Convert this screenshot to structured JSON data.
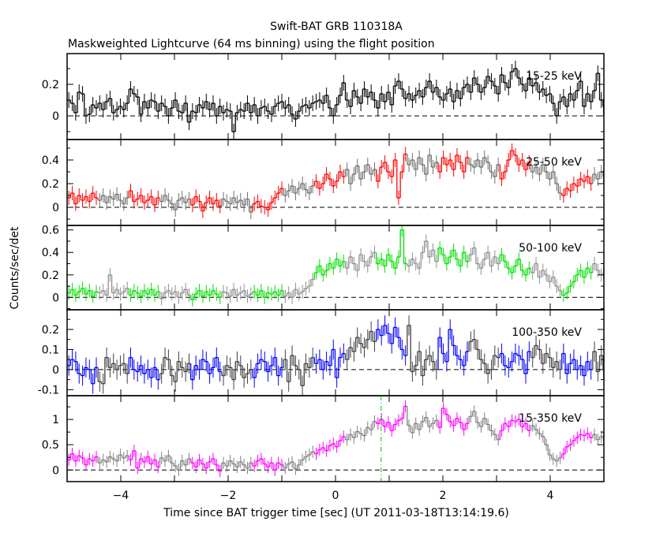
{
  "chart_data": [
    {
      "type": "line",
      "title": "Swift-BAT GRB 110318A",
      "subtitle": "Maskweighted Lightcurve (64 ms binning) using the flight position",
      "xlabel": "Time since BAT trigger time [sec] (UT 2011-03-18T13:14:19.6)",
      "ylabel": "Counts/sec/det",
      "xlim": [
        -5,
        5
      ],
      "x_ticks": [
        -4,
        -2,
        0,
        2,
        4
      ],
      "t_start": -5,
      "bin_width": 0.064,
      "reference_line_t": 0.85,
      "panels": [
        {
          "label": "15-25 keV",
          "color": "#000000",
          "alt_color": "#000000",
          "ylim": [
            -0.15,
            0.395
          ],
          "y_ticks": [
            0,
            0.2
          ],
          "error": 0.05,
          "values": [
            0.1,
            0.08,
            0.02,
            0.15,
            0.14,
            0.0,
            0.01,
            0.07,
            0.05,
            0.08,
            0.04,
            0.09,
            0.11,
            0.02,
            0.04,
            0.06,
            0.04,
            0.08,
            0.17,
            0.14,
            0.12,
            0.01,
            0.09,
            0.05,
            0.1,
            0.09,
            0.03,
            0.08,
            0.06,
            0.0,
            0.05,
            0.1,
            0.03,
            0.02,
            0.08,
            -0.04,
            0.03,
            0.02,
            0.07,
            0.05,
            0.09,
            0.04,
            0.08,
            0.0,
            0.06,
            0.02,
            0.04,
            0.03,
            -0.1,
            0.02,
            0.04,
            0.03,
            0.08,
            0.02,
            0.07,
            0.0,
            0.05,
            0.06,
            0.03,
            0.01,
            0.06,
            0.08,
            0.09,
            0.05,
            0.07,
            0.01,
            -0.02,
            0.03,
            0.06,
            0.07,
            0.05,
            0.08,
            0.09,
            0.1,
            0.08,
            0.13,
            0.05,
            0.0,
            0.07,
            0.13,
            0.21,
            0.1,
            0.06,
            0.16,
            0.12,
            0.08,
            0.17,
            0.12,
            0.15,
            0.1,
            0.05,
            0.14,
            0.09,
            0.15,
            0.07,
            0.19,
            0.22,
            0.17,
            0.11,
            0.14,
            0.1,
            0.13,
            0.16,
            0.12,
            0.18,
            0.22,
            0.15,
            0.18,
            0.12,
            0.1,
            0.14,
            0.17,
            0.09,
            0.16,
            0.11,
            0.18,
            0.2,
            0.15,
            0.24,
            0.2,
            0.15,
            0.18,
            0.25,
            0.22,
            0.19,
            0.14,
            0.26,
            0.21,
            0.18,
            0.28,
            0.3,
            0.24,
            0.2,
            0.16,
            0.24,
            0.19,
            0.21,
            0.15,
            0.17,
            0.13,
            0.14,
            0.08,
            0.0,
            0.09,
            0.12,
            0.06,
            0.14,
            0.1,
            0.16,
            0.22,
            0.06,
            0.14,
            0.09,
            0.16,
            0.27,
            0.1,
            0.06
          ]
        },
        {
          "label": "25-50 keV",
          "color": "#ff0000",
          "alt_color": "#707070",
          "ylim": [
            -0.153,
            0.573
          ],
          "y_ticks": [
            0,
            0.2,
            0.4
          ],
          "error": 0.06,
          "values": [
            0.08,
            0.12,
            0.03,
            0.1,
            0.06,
            0.09,
            0.05,
            0.12,
            0.08,
            0.06,
            0.1,
            0.04,
            0.09,
            0.07,
            0.11,
            0.06,
            0.03,
            0.08,
            0.14,
            0.05,
            0.07,
            0.1,
            0.04,
            0.06,
            0.09,
            0.02,
            0.08,
            0.05,
            0.1,
            0.06,
            0.03,
            -0.02,
            0.06,
            0.08,
            0.04,
            0.07,
            0.02,
            0.09,
            0.05,
            -0.03,
            0.04,
            0.08,
            0.03,
            0.06,
            0.01,
            0.07,
            0.05,
            0.03,
            0.08,
            0.04,
            0.06,
            0.02,
            0.07,
            -0.04,
            0.03,
            0.05,
            0.01,
            0.0,
            -0.02,
            0.04,
            0.08,
            0.12,
            0.16,
            0.1,
            0.14,
            0.18,
            0.12,
            0.16,
            0.2,
            0.15,
            0.12,
            0.18,
            0.22,
            0.16,
            0.2,
            0.28,
            0.24,
            0.18,
            0.22,
            0.3,
            0.26,
            0.32,
            0.2,
            0.28,
            0.35,
            0.24,
            0.3,
            0.36,
            0.28,
            0.32,
            0.22,
            0.34,
            0.38,
            0.3,
            0.26,
            0.4,
            0.08,
            0.3,
            0.45,
            0.36,
            0.4,
            0.32,
            0.42,
            0.36,
            0.28,
            0.44,
            0.34,
            0.38,
            0.3,
            0.42,
            0.36,
            0.4,
            0.32,
            0.44,
            0.38,
            0.3,
            0.42,
            0.36,
            0.34,
            0.4,
            0.34,
            0.42,
            0.38,
            0.3,
            0.26,
            0.36,
            0.24,
            0.3,
            0.4,
            0.48,
            0.44,
            0.36,
            0.4,
            0.32,
            0.38,
            0.3,
            0.34,
            0.28,
            0.36,
            0.3,
            0.24,
            0.3,
            0.2,
            0.12,
            0.1,
            0.16,
            0.14,
            0.2,
            0.18,
            0.24,
            0.22,
            0.26,
            0.2,
            0.28,
            0.24,
            0.3,
            0.26
          ]
        },
        {
          "label": "50-100 keV",
          "color": "#00e000",
          "alt_color": "#909090",
          "ylim": [
            -0.11,
            0.64
          ],
          "y_ticks": [
            0,
            0.2,
            0.4,
            0.6
          ],
          "error": 0.06,
          "values": [
            0.04,
            0.07,
            0.02,
            0.05,
            0.08,
            0.03,
            0.06,
            0.01,
            0.05,
            0.04,
            0.06,
            0.02,
            0.2,
            0.04,
            0.07,
            0.03,
            0.05,
            0.08,
            0.02,
            0.06,
            0.04,
            0.01,
            0.06,
            0.03,
            0.07,
            0.02,
            0.05,
            -0.01,
            0.04,
            0.06,
            0.03,
            0.05,
            0.0,
            0.04,
            0.07,
            0.02,
            -0.02,
            0.03,
            0.06,
            0.01,
            0.05,
            0.02,
            0.06,
            0.03,
            0.0,
            0.05,
            0.04,
            0.01,
            0.07,
            0.02,
            0.04,
            0.06,
            0.01,
            0.03,
            0.05,
            0.02,
            0.06,
            0.0,
            0.04,
            0.03,
            0.05,
            0.02,
            0.06,
            0.01,
            0.04,
            0.0,
            0.07,
            0.03,
            0.05,
            0.08,
            0.1,
            0.16,
            0.22,
            0.28,
            0.2,
            0.24,
            0.3,
            0.26,
            0.34,
            0.28,
            0.32,
            0.26,
            0.36,
            0.3,
            0.24,
            0.38,
            0.32,
            0.28,
            0.36,
            0.4,
            0.3,
            0.34,
            0.28,
            0.38,
            0.32,
            0.26,
            0.36,
            0.6,
            0.3,
            0.28,
            0.34,
            0.3,
            0.26,
            0.4,
            0.5,
            0.36,
            0.42,
            0.32,
            0.44,
            0.38,
            0.3,
            0.36,
            0.42,
            0.34,
            0.28,
            0.4,
            0.32,
            0.38,
            0.44,
            0.3,
            0.26,
            0.34,
            0.4,
            0.28,
            0.36,
            0.3,
            0.38,
            0.32,
            0.26,
            0.22,
            0.28,
            0.34,
            0.24,
            0.2,
            0.26,
            0.22,
            0.3,
            0.18,
            0.24,
            0.2,
            0.14,
            0.18,
            0.1,
            0.06,
            0.02,
            0.04,
            0.1,
            0.14,
            0.2,
            0.24,
            0.18,
            0.26,
            0.22,
            0.3,
            0.24,
            0.2,
            0.22
          ]
        },
        {
          "label": "100-350 keV",
          "color": "#0000ff",
          "alt_color": "#404040",
          "ylim": [
            -0.13,
            0.298
          ],
          "y_ticks": [
            -0.1,
            0,
            0.1,
            0.2
          ],
          "error": 0.05,
          "values": [
            0.02,
            0.05,
            0.04,
            -0.02,
            -0.03,
            0.01,
            0.0,
            -0.07,
            0.01,
            -0.06,
            -0.07,
            0.06,
            0.01,
            0.03,
            0.0,
            0.02,
            0.03,
            -0.02,
            0.06,
            0.0,
            -0.01,
            0.02,
            -0.02,
            0.0,
            -0.04,
            0.01,
            -0.05,
            -0.02,
            0.06,
            0.05,
            -0.03,
            -0.06,
            0.04,
            0.01,
            -0.01,
            0.03,
            -0.05,
            0.02,
            0.0,
            0.05,
            0.04,
            -0.02,
            0.01,
            0.06,
            -0.01,
            -0.03,
            0.02,
            0.01,
            -0.05,
            0.04,
            0.02,
            -0.04,
            -0.02,
            0.0,
            -0.04,
            0.03,
            0.05,
            0.04,
            -0.01,
            0.02,
            0.06,
            -0.03,
            0.01,
            0.05,
            -0.06,
            0.07,
            0.02,
            0.0,
            -0.08,
            0.03,
            0.01,
            0.06,
            0.03,
            0.05,
            0.0,
            0.04,
            0.02,
            0.1,
            -0.04,
            0.06,
            0.08,
            0.05,
            0.11,
            0.09,
            0.16,
            0.13,
            0.11,
            0.15,
            0.19,
            0.14,
            0.2,
            0.17,
            0.22,
            0.18,
            0.13,
            0.21,
            0.16,
            0.1,
            0.07,
            0.22,
            -0.01,
            0.02,
            0.09,
            -0.03,
            0.05,
            0.07,
            0.04,
            0.0,
            0.16,
            0.08,
            0.04,
            0.2,
            0.12,
            0.07,
            0.05,
            0.02,
            0.09,
            0.14,
            0.15,
            0.1,
            0.05,
            0.03,
            -0.02,
            0.0,
            0.07,
            0.06,
            0.08,
            0.02,
            0.01,
            0.04,
            0.08,
            0.07,
            0.05,
            -0.02,
            0.09,
            0.06,
            0.12,
            0.1,
            0.03,
            0.08,
            0.06,
            0.01,
            0.04,
            0.0,
            0.08,
            -0.02,
            0.03,
            0.05,
            0.0,
            0.02,
            -0.03,
            0.04,
            0.0,
            0.09,
            -0.01,
            0.07,
            0.0
          ]
        },
        {
          "label": "15-350 keV",
          "color": "#ff00ff",
          "alt_color": "#808080",
          "ylim": [
            -0.23,
            1.47
          ],
          "y_ticks": [
            0,
            0.5,
            1
          ],
          "error": 0.12,
          "values": [
            0.2,
            0.32,
            0.18,
            0.28,
            0.24,
            0.1,
            0.22,
            0.18,
            0.26,
            0.14,
            0.2,
            0.16,
            0.26,
            0.22,
            0.18,
            0.3,
            0.24,
            0.28,
            0.2,
            0.38,
            0.04,
            0.22,
            0.16,
            0.26,
            0.12,
            0.2,
            0.06,
            0.24,
            0.18,
            0.28,
            0.14,
            0.08,
            0.0,
            0.18,
            0.1,
            0.22,
            0.14,
            0.06,
            0.2,
            0.12,
            0.04,
            0.16,
            0.22,
            0.1,
            -0.02,
            0.14,
            0.08,
            0.18,
            0.12,
            0.06,
            0.16,
            0.1,
            0.04,
            0.14,
            0.08,
            0.18,
            0.22,
            0.12,
            0.06,
            0.14,
            0.0,
            0.14,
            0.1,
            0.04,
            0.12,
            0.16,
            0.02,
            0.1,
            0.2,
            0.26,
            0.3,
            0.36,
            0.32,
            0.4,
            0.44,
            0.38,
            0.48,
            0.52,
            0.46,
            0.58,
            0.66,
            0.6,
            0.7,
            0.64,
            0.76,
            0.72,
            0.68,
            0.84,
            0.8,
            0.96,
            0.92,
            1.0,
            0.86,
            0.94,
            0.78,
            0.9,
            0.98,
            1.02,
            1.26,
            0.88,
            0.74,
            0.92,
            0.8,
            0.96,
            1.04,
            0.86,
            0.92,
            0.98,
            0.84,
            1.22,
            1.1,
            0.96,
            0.88,
            1.02,
            0.94,
            0.8,
            0.92,
            1.06,
            1.16,
            0.94,
            0.86,
            1.02,
            0.9,
            0.78,
            0.7,
            0.6,
            0.78,
            0.92,
            0.86,
            0.98,
            0.96,
            1.0,
            0.86,
            0.92,
            0.78,
            0.88,
            0.8,
            0.72,
            0.66,
            0.5,
            0.3,
            0.22,
            0.18,
            0.24,
            0.32,
            0.46,
            0.5,
            0.58,
            0.64,
            0.7,
            0.68,
            0.72,
            0.64,
            0.7,
            0.6,
            0.66,
            0.62
          ]
        }
      ]
    }
  ]
}
